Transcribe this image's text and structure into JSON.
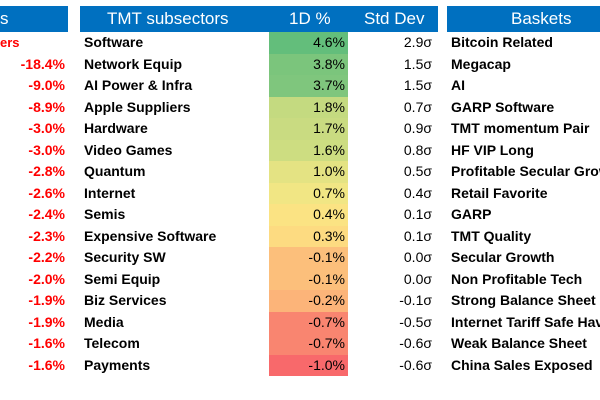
{
  "left": {
    "header_fragment": "s",
    "sub_fragment": "ers",
    "values": [
      "-18.4%",
      "-9.0%",
      "-8.9%",
      "-3.0%",
      "-3.0%",
      "-2.8%",
      "-2.6%",
      "-2.4%",
      "-2.3%",
      "-2.2%",
      "-2.0%",
      "-1.9%",
      "-1.9%",
      "-1.6%",
      "-1.6%"
    ]
  },
  "middle": {
    "header": {
      "name": "TMT subsectors",
      "pct": "1D %",
      "sd": "Std Dev"
    },
    "rows": [
      {
        "name": "Software",
        "pct": "4.6%",
        "sd": "2.9σ",
        "color": "#63be7b"
      },
      {
        "name": "Network Equip",
        "pct": "3.8%",
        "sd": "1.5σ",
        "color": "#7bc57c"
      },
      {
        "name": "AI Power & Infra",
        "pct": "3.7%",
        "sd": "1.5σ",
        "color": "#7fc67d"
      },
      {
        "name": "Apple Suppliers",
        "pct": "1.8%",
        "sd": "0.7σ",
        "color": "#c4da80"
      },
      {
        "name": "Hardware",
        "pct": "1.7%",
        "sd": "0.9σ",
        "color": "#c9db81"
      },
      {
        "name": "Video Games",
        "pct": "1.6%",
        "sd": "0.8σ",
        "color": "#cddd81"
      },
      {
        "name": "Quantum",
        "pct": "1.0%",
        "sd": "0.5σ",
        "color": "#e4e383"
      },
      {
        "name": "Internet",
        "pct": "0.7%",
        "sd": "0.4σ",
        "color": "#f1e684"
      },
      {
        "name": "Semis",
        "pct": "0.4%",
        "sd": "0.1σ",
        "color": "#fbe383"
      },
      {
        "name": "Expensive Software",
        "pct": "0.3%",
        "sd": "0.1σ",
        "color": "#fddb81"
      },
      {
        "name": "Security SW",
        "pct": "-0.1%",
        "sd": "0.0σ",
        "color": "#fcbf7b"
      },
      {
        "name": "Semi Equip",
        "pct": "-0.1%",
        "sd": "0.0σ",
        "color": "#fcbf7b"
      },
      {
        "name": "Biz Services",
        "pct": "-0.2%",
        "sd": "-0.1σ",
        "color": "#fcb479"
      },
      {
        "name": "Media",
        "pct": "-0.7%",
        "sd": "-0.5σ",
        "color": "#f98570"
      },
      {
        "name": "Telecom",
        "pct": "-0.7%",
        "sd": "-0.6σ",
        "color": "#f98570"
      },
      {
        "name": "Payments",
        "pct": "-1.0%",
        "sd": "-0.6σ",
        "color": "#f8696b"
      }
    ]
  },
  "right": {
    "header": "Baskets",
    "rows": [
      "Bitcoin Related",
      "Megacap",
      "AI",
      "GARP Software",
      "TMT momentum Pair",
      "HF VIP Long",
      "Profitable Secular Grow",
      "Retail Favorite",
      "GARP",
      "TMT Quality",
      "Secular Growth",
      "Non Profitable Tech",
      "Strong Balance Sheet",
      "Internet Tariff Safe Hav",
      "Weak Balance Sheet",
      "China Sales Exposed"
    ]
  }
}
